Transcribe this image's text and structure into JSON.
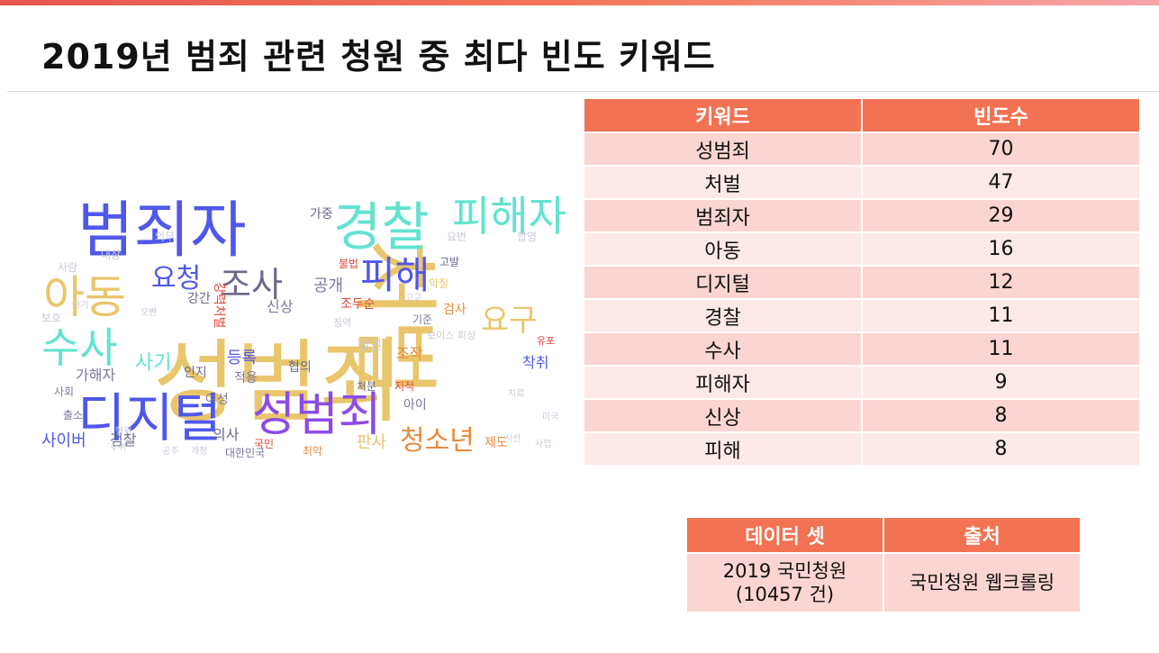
{
  "title": "2019년 범죄 관련 청원 중 최다 빈도 키워드",
  "colors": {
    "accent": "#f27253",
    "row_odd": "#fbd5d1",
    "row_even": "#fde9e7"
  },
  "wordcloud": {
    "words": [
      {
        "text": "성범죄",
        "color": "#e9c66c"
      },
      {
        "text": "범죄자",
        "color": "#4f58ea"
      },
      {
        "text": "처벌",
        "color": "#e9c66c"
      },
      {
        "text": "경찰",
        "color": "#62e3cf"
      },
      {
        "text": "피해자",
        "color": "#62e3cf"
      },
      {
        "text": "아동",
        "color": "#e9c66c"
      },
      {
        "text": "디지털",
        "color": "#4f58ea"
      },
      {
        "text": "성범죄",
        "color": "#8c4be8"
      },
      {
        "text": "수사",
        "color": "#62e3cf"
      },
      {
        "text": "피해",
        "color": "#4f58ea"
      },
      {
        "text": "조사",
        "color": "#6a6a8a"
      },
      {
        "text": "청소년",
        "color": "#e98a3c"
      },
      {
        "text": "요청",
        "color": "#4f58ea"
      },
      {
        "text": "신상",
        "color": "#7a7aa0"
      },
      {
        "text": "공개",
        "color": "#7a7aa0"
      },
      {
        "text": "사기",
        "color": "#62e3cf"
      },
      {
        "text": "등록",
        "color": "#4f58ea"
      },
      {
        "text": "여성",
        "color": "#7a7aa0"
      },
      {
        "text": "사이버",
        "color": "#4f58ea"
      },
      {
        "text": "검찰",
        "color": "#6a6a8a"
      },
      {
        "text": "가해자",
        "color": "#7a7aa0"
      },
      {
        "text": "요구",
        "color": "#e9c66c"
      },
      {
        "text": "판사",
        "color": "#e9c66c"
      },
      {
        "text": "제도",
        "color": "#e98a3c"
      },
      {
        "text": "검사",
        "color": "#e98a3c"
      },
      {
        "text": "착취",
        "color": "#4f58ea"
      },
      {
        "text": "의사",
        "color": "#6a6a8a"
      },
      {
        "text": "인지",
        "color": "#6a6a8a"
      },
      {
        "text": "협의",
        "color": "#6a6a8a"
      },
      {
        "text": "가중",
        "color": "#6a6a8a"
      },
      {
        "text": "강간",
        "color": "#6a6a8a"
      },
      {
        "text": "적용",
        "color": "#7a7aa0"
      },
      {
        "text": "아이",
        "color": "#7a7aa0"
      },
      {
        "text": "살인",
        "color": "#c9c9d9"
      },
      {
        "text": "조작",
        "color": "#e98a3c"
      },
      {
        "text": "기준",
        "color": "#7a7aa0"
      },
      {
        "text": "처분",
        "color": "#6a6a8a"
      },
      {
        "text": "지적",
        "color": "#e8463c"
      },
      {
        "text": "대한민국",
        "color": "#7a7aa0"
      },
      {
        "text": "최악",
        "color": "#e98a3c"
      },
      {
        "text": "국민",
        "color": "#e8463c"
      },
      {
        "text": "조두순",
        "color": "#e8463c"
      },
      {
        "text": "불법",
        "color": "#e8463c"
      },
      {
        "text": "고발",
        "color": "#6a6a8a"
      },
      {
        "text": "악질",
        "color": "#e9c66c"
      },
      {
        "text": "보이스 피싱",
        "color": "#c9c9d9"
      },
      {
        "text": "시선",
        "color": "#c9c9d9"
      },
      {
        "text": "출소",
        "color": "#7a7aa0"
      },
      {
        "text": "사회",
        "color": "#7a7aa0"
      },
      {
        "text": "보호",
        "color": "#c9c9d9"
      },
      {
        "text": "대상",
        "color": "#c9c9d9"
      },
      {
        "text": "유포",
        "color": "#e8463c"
      },
      {
        "text": "사업",
        "color": "#c9c9d9"
      },
      {
        "text": "미국",
        "color": "#c9c9d9"
      },
      {
        "text": "치료",
        "color": "#c9c9d9"
      },
      {
        "text": "고교",
        "color": "#c9c9d9"
      },
      {
        "text": "징역",
        "color": "#c9c9d9"
      },
      {
        "text": "요번",
        "color": "#c9c9d9"
      },
      {
        "text": "합영",
        "color": "#c9c9d9"
      },
      {
        "text": "의무",
        "color": "#c9c9d9"
      },
      {
        "text": "사람",
        "color": "#c9c9d9"
      },
      {
        "text": "수위",
        "color": "#c9c9d9"
      },
      {
        "text": "형위",
        "color": "#c9c9d9"
      },
      {
        "text": "공주",
        "color": "#c9c9d9"
      },
      {
        "text": "개정",
        "color": "#c9c9d9"
      },
      {
        "text": "강력처벌",
        "color": "#e8463c"
      },
      {
        "text": "아기",
        "color": "#c9c9d9"
      },
      {
        "text": "오빤",
        "color": "#c9c9d9"
      }
    ]
  },
  "frequency_table": {
    "headers": [
      "키워드",
      "빈도수"
    ],
    "rows": [
      {
        "keyword": "성범죄",
        "count": "70"
      },
      {
        "keyword": "처벌",
        "count": "47"
      },
      {
        "keyword": "범죄자",
        "count": "29"
      },
      {
        "keyword": "아동",
        "count": "16"
      },
      {
        "keyword": "디지털",
        "count": "12"
      },
      {
        "keyword": "경찰",
        "count": "11"
      },
      {
        "keyword": "수사",
        "count": "11"
      },
      {
        "keyword": "피해자",
        "count": "9"
      },
      {
        "keyword": "신상",
        "count": "8"
      },
      {
        "keyword": "피해",
        "count": "8"
      }
    ]
  },
  "source_table": {
    "headers": [
      "데이터 셋",
      "출처"
    ],
    "dataset_line1": "2019 국민청원",
    "dataset_line2": "(10457 건)",
    "source": "국민청원 웹크롤링"
  }
}
